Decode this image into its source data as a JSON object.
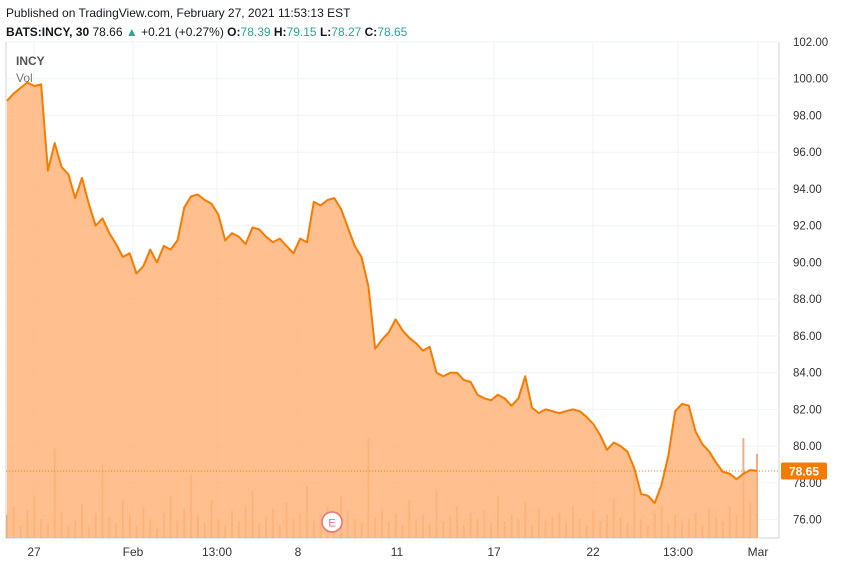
{
  "header": {
    "published": "Published on TradingView.com, February 27, 2021 11:53:13 EST",
    "symbol": "BATS:INCY, 30",
    "last": "78.66",
    "arrow": "▲",
    "change": "+0.21 (+0.27%)",
    "o_label": "O:",
    "o_value": "78.39",
    "h_label": "H:",
    "h_value": "79.15",
    "l_label": "L:",
    "l_value": "78.27",
    "c_label": "C:",
    "c_value": "78.65"
  },
  "legend": {
    "symbol": "INCY",
    "volume": "Vol"
  },
  "colors": {
    "line": "#f57c00",
    "fill": "#ffb47a",
    "volume": "#ef9a6a",
    "price_badge": "#f57c00",
    "up": "#26a69a"
  },
  "chart_data": {
    "type": "area",
    "ylim": [
      75.0,
      102.0
    ],
    "y_ticks": [
      "76.00",
      "78.00",
      "80.00",
      "82.00",
      "84.00",
      "86.00",
      "88.00",
      "90.00",
      "92.00",
      "94.00",
      "96.00",
      "98.00",
      "100.00",
      "102.00"
    ],
    "x_ticks": [
      "27",
      "Feb",
      "13:00",
      "8",
      "11",
      "17",
      "22",
      "13:00",
      "Mar"
    ],
    "last_price_label": "78.65",
    "event_marker": "E",
    "series": [
      {
        "values": [
          98.8,
          99.2,
          99.5,
          99.8,
          99.6,
          99.7,
          95.0,
          96.5,
          95.2,
          94.8,
          93.5,
          94.6,
          93.2,
          92.0,
          92.4,
          91.6,
          91.0,
          90.3,
          90.5,
          89.4,
          89.8,
          90.7,
          90.0,
          90.9,
          90.7,
          91.2,
          93.0,
          93.6,
          93.7,
          93.4,
          93.2,
          92.6,
          91.2,
          91.6,
          91.4,
          91.0,
          91.9,
          91.8,
          91.4,
          91.1,
          91.3,
          90.9,
          90.5,
          91.3,
          91.1,
          93.3,
          93.1,
          93.4,
          93.5,
          92.9,
          91.9,
          90.9,
          90.3,
          88.7,
          85.3,
          85.8,
          86.2,
          86.9,
          86.3,
          85.9,
          85.6,
          85.2,
          85.4,
          84.0,
          83.8,
          84.0,
          84.0,
          83.6,
          83.5,
          82.8,
          82.6,
          82.5,
          82.8,
          82.6,
          82.2,
          82.6,
          83.8,
          82.1,
          81.8,
          82.0,
          81.9,
          81.8,
          81.9,
          82.0,
          81.9,
          81.6,
          81.2,
          80.6,
          79.8,
          80.2,
          80.0,
          79.7,
          78.8,
          77.4,
          77.3,
          76.9,
          77.9,
          79.5,
          81.9,
          82.3,
          82.2,
          80.8,
          80.1,
          79.7,
          79.1,
          78.6,
          78.5,
          78.2,
          78.5,
          78.7,
          78.65
        ]
      }
    ],
    "volume": [
      22,
      30,
      12,
      26,
      40,
      18,
      14,
      85,
      25,
      12,
      16,
      32,
      10,
      24,
      70,
      20,
      14,
      36,
      22,
      12,
      30,
      18,
      9,
      24,
      40,
      16,
      28,
      60,
      22,
      14,
      36,
      18,
      12,
      26,
      16,
      30,
      45,
      14,
      20,
      28,
      12,
      34,
      18,
      24,
      50,
      16,
      22,
      30,
      12,
      40,
      26,
      18,
      14,
      95,
      20,
      28,
      16,
      24,
      12,
      36,
      18,
      22,
      14,
      45,
      16,
      20,
      30,
      12,
      24,
      18,
      26,
      14,
      40,
      16,
      22,
      18,
      34,
      12,
      28,
      16,
      20,
      24,
      14,
      30,
      18,
      12,
      26,
      16,
      22,
      38,
      20,
      14,
      60,
      18,
      12,
      24,
      30,
      14,
      22,
      16,
      18,
      24,
      12,
      28,
      20,
      16,
      30,
      22,
      95,
      34,
      80
    ]
  }
}
